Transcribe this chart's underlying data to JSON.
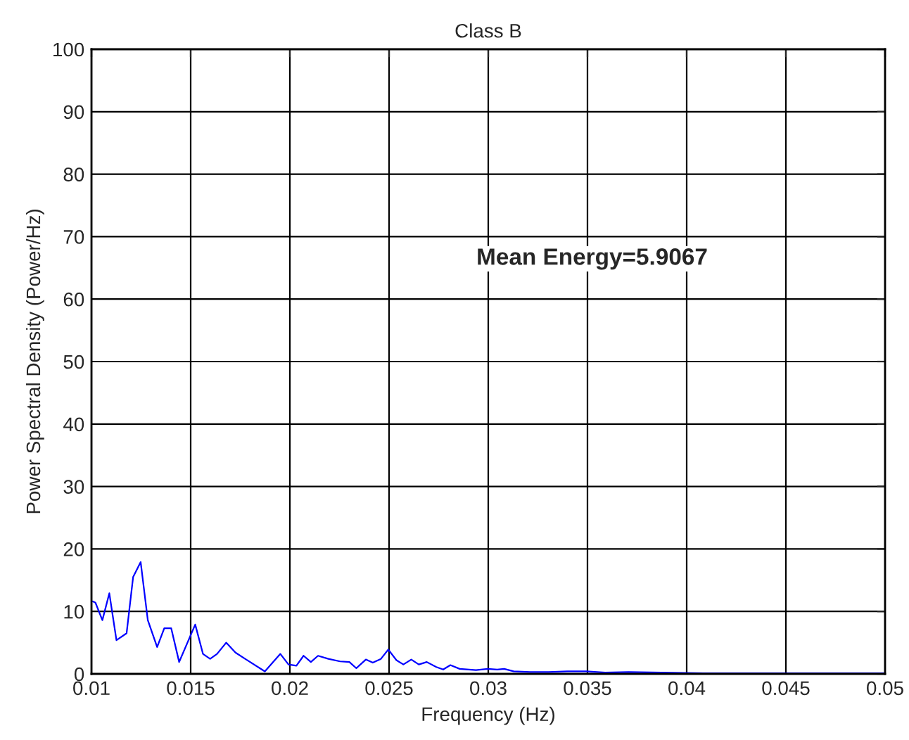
{
  "chart_data": {
    "type": "line",
    "title": "Class B",
    "xlabel": "Frequency (Hz)",
    "ylabel": "Power Spectral Density (Power/Hz)",
    "annotations": [
      "Mean Energy=5.9067"
    ],
    "xlim": [
      0.01,
      0.05
    ],
    "xticks": [
      0.01,
      0.015,
      0.02,
      0.025,
      0.03,
      0.035,
      0.04,
      0.045,
      0.05
    ],
    "ylim": [
      0,
      100
    ],
    "yticks": [
      0,
      10,
      20,
      30,
      40,
      50,
      60,
      70,
      80,
      90,
      100
    ],
    "grid": true,
    "series": [
      {
        "color": "#0000ff",
        "x": [
          0.01007,
          0.0102,
          0.01055,
          0.0109,
          0.01126,
          0.01177,
          0.0121,
          0.01248,
          0.01284,
          0.01331,
          0.01367,
          0.01402,
          0.01442,
          0.01523,
          0.01562,
          0.01598,
          0.01633,
          0.01679,
          0.01726,
          0.0178,
          0.01874,
          0.01952,
          0.01993,
          0.02033,
          0.02069,
          0.02106,
          0.02142,
          0.02194,
          0.02253,
          0.023,
          0.02335,
          0.02383,
          0.02418,
          0.02459,
          0.02496,
          0.02537,
          0.02572,
          0.02612,
          0.0265,
          0.0269,
          0.02738,
          0.02773,
          0.02809,
          0.02856,
          0.02938,
          0.02998,
          0.03045,
          0.0308,
          0.03128,
          0.03211,
          0.03305,
          0.03399,
          0.03494,
          0.03589,
          0.03707,
          0.03872,
          0.04085,
          0.04511,
          0.05
        ],
        "values": [
          11.6,
          11.4,
          8.6,
          12.9,
          5.4,
          6.5,
          15.5,
          17.9,
          8.6,
          4.3,
          7.3,
          7.3,
          1.9,
          7.9,
          3.2,
          2.4,
          3.2,
          5.0,
          3.4,
          2.3,
          0.4,
          3.2,
          1.5,
          1.3,
          2.9,
          1.9,
          2.9,
          2.4,
          2.0,
          1.9,
          0.9,
          2.3,
          1.8,
          2.4,
          3.9,
          2.2,
          1.5,
          2.3,
          1.5,
          1.9,
          1.1,
          0.7,
          1.4,
          0.8,
          0.6,
          0.8,
          0.7,
          0.8,
          0.4,
          0.3,
          0.3,
          0.4,
          0.4,
          0.2,
          0.3,
          0.2,
          0.1,
          0.1,
          0.1
        ]
      }
    ]
  }
}
